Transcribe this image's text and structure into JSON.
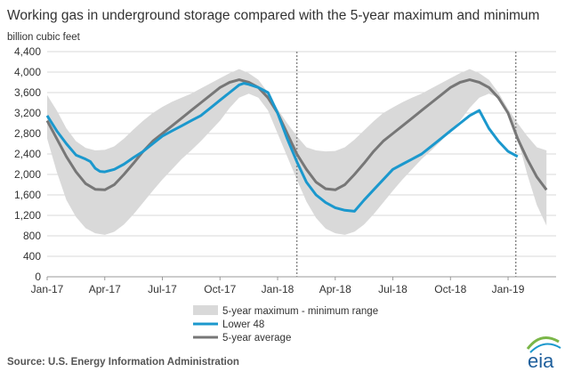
{
  "chart_data": {
    "type": "line",
    "title": "Working gas in underground  storage compared with the 5-year maximum and minimum",
    "ylabel": "billion cubic feet",
    "ylim": [
      0,
      4400
    ],
    "yticks": [
      0,
      400,
      800,
      1200,
      1600,
      2000,
      2400,
      2800,
      3200,
      3600,
      4000,
      4400
    ],
    "ytick_labels": [
      "0",
      "400",
      "800",
      "1,200",
      "1,600",
      "2,000",
      "2,400",
      "2,800",
      "3,200",
      "3,600",
      "4,000",
      "4,400"
    ],
    "xlim": [
      0,
      26.5
    ],
    "xticks": [
      0,
      3,
      6,
      9,
      12,
      15,
      18,
      21,
      24
    ],
    "xtick_labels": [
      "Jan-17",
      "Apr-17",
      "Jul-17",
      "Oct-17",
      "Jan-18",
      "Apr-18",
      "Jul-18",
      "Oct-18",
      "Jan-19"
    ],
    "grid": "horizontal",
    "x_unit": "months since Jan-17",
    "vlines": [
      13.0,
      24.4
    ],
    "series": [
      {
        "name": "5-year maximum - minimum range",
        "kind": "band",
        "color": "#d9d9d9",
        "x": [
          0,
          0.5,
          1,
          1.5,
          2,
          2.5,
          3,
          3.5,
          4,
          4.5,
          5,
          5.5,
          6,
          6.5,
          7,
          7.5,
          8,
          8.5,
          9,
          9.5,
          10,
          10.5,
          11,
          11.5,
          12,
          12.5,
          13,
          13.5,
          14,
          14.5,
          15,
          15.5,
          16,
          16.5,
          17,
          17.5,
          18,
          18.5,
          19,
          19.5,
          20,
          20.5,
          21,
          21.5,
          22,
          22.5,
          23,
          23.5,
          24,
          24.5,
          25,
          25.5,
          26
        ],
        "upper": [
          3550,
          3250,
          2900,
          2650,
          2520,
          2470,
          2480,
          2550,
          2700,
          2880,
          3050,
          3200,
          3320,
          3420,
          3500,
          3580,
          3680,
          3780,
          3880,
          3980,
          4060,
          3980,
          3850,
          3600,
          3280,
          3000,
          2750,
          2530,
          2470,
          2450,
          2460,
          2530,
          2680,
          2860,
          3040,
          3200,
          3310,
          3410,
          3500,
          3580,
          3680,
          3780,
          3880,
          3980,
          4060,
          3980,
          3850,
          3600,
          3280,
          3000,
          2750,
          2530,
          2470
        ],
        "lower": [
          2700,
          2050,
          1500,
          1170,
          950,
          850,
          820,
          880,
          1020,
          1220,
          1450,
          1680,
          1900,
          2100,
          2300,
          2470,
          2650,
          2850,
          3050,
          3300,
          3500,
          3580,
          3500,
          3250,
          2800,
          2350,
          1900,
          1470,
          1150,
          940,
          850,
          820,
          880,
          1020,
          1220,
          1450,
          1680,
          1900,
          2100,
          2300,
          2470,
          2650,
          2850,
          3050,
          3300,
          3500,
          3580,
          3500,
          3250,
          2700,
          2000,
          1400,
          1000
        ]
      },
      {
        "name": "Lower 48",
        "kind": "line",
        "color": "#1b98cd",
        "x": [
          0,
          0.5,
          1,
          1.5,
          2,
          2.25,
          2.5,
          2.75,
          3,
          3.5,
          4,
          4.5,
          5,
          5.5,
          6,
          6.5,
          7,
          7.5,
          8,
          8.5,
          9,
          9.5,
          10,
          10.25,
          10.5,
          11,
          11.5,
          12,
          12.5,
          13,
          13.5,
          14,
          14.5,
          15,
          15.5,
          16,
          16.5,
          17,
          17.5,
          18,
          18.5,
          19,
          19.5,
          20,
          20.5,
          21,
          21.5,
          22,
          22.5,
          23,
          23.5,
          24,
          24.5
        ],
        "y": [
          3150,
          2850,
          2600,
          2380,
          2300,
          2250,
          2120,
          2060,
          2050,
          2100,
          2200,
          2330,
          2450,
          2600,
          2750,
          2850,
          2950,
          3050,
          3150,
          3300,
          3450,
          3600,
          3750,
          3780,
          3760,
          3700,
          3600,
          3200,
          2700,
          2250,
          1850,
          1600,
          1450,
          1350,
          1300,
          1280,
          1500,
          1700,
          1900,
          2100,
          2200,
          2300,
          2400,
          2550,
          2700,
          2850,
          3000,
          3150,
          3250,
          2900,
          2650,
          2450,
          2350
        ]
      },
      {
        "name": "5-year average",
        "kind": "line",
        "color": "#777777",
        "x": [
          0,
          0.5,
          1,
          1.5,
          2,
          2.5,
          3,
          3.5,
          4,
          4.5,
          5,
          5.5,
          6,
          6.5,
          7,
          7.5,
          8,
          8.5,
          9,
          9.5,
          10,
          10.5,
          11,
          11.5,
          12,
          12.5,
          13,
          13.5,
          14,
          14.5,
          15,
          15.5,
          16,
          16.5,
          17,
          17.5,
          18,
          18.5,
          19,
          19.5,
          20,
          20.5,
          21,
          21.5,
          22,
          22.5,
          23,
          23.5,
          24,
          24.5,
          25,
          25.5,
          26
        ],
        "y": [
          3050,
          2700,
          2350,
          2050,
          1820,
          1710,
          1700,
          1800,
          2000,
          2220,
          2450,
          2650,
          2800,
          2950,
          3100,
          3250,
          3400,
          3550,
          3700,
          3800,
          3850,
          3800,
          3700,
          3500,
          3200,
          2800,
          2400,
          2100,
          1850,
          1720,
          1700,
          1800,
          2000,
          2220,
          2450,
          2650,
          2800,
          2950,
          3100,
          3250,
          3400,
          3550,
          3700,
          3800,
          3850,
          3800,
          3700,
          3500,
          3200,
          2700,
          2300,
          1950,
          1700
        ]
      }
    ],
    "legend": [
      "5-year maximum - minimum range",
      "Lower 48",
      "5-year average"
    ],
    "legend_position": "bottom-center",
    "source": "Source:  U.S. Energy Information Administration"
  },
  "logo": {
    "text": "eia",
    "color": "#1f5f9c"
  }
}
